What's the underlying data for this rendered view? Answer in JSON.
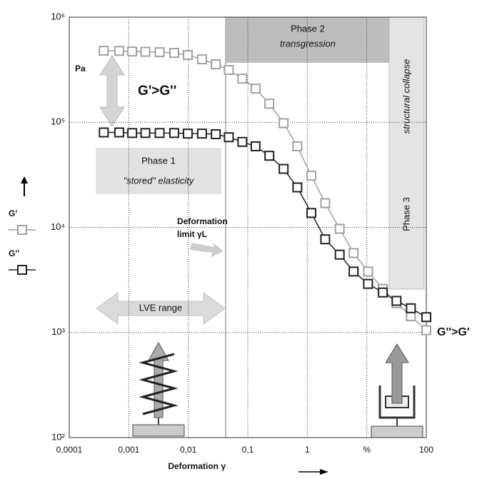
{
  "chart_data": {
    "type": "line",
    "x_label": "Deformation   γ",
    "y_label": "Pa",
    "xscale": "log",
    "yscale": "log",
    "xlim": [
      0.0001,
      100
    ],
    "ylim": [
      100,
      1000000
    ],
    "xticks": [
      {
        "value": 0.0001,
        "label": "0,0001"
      },
      {
        "value": 0.001,
        "label": "0,001"
      },
      {
        "value": 0.01,
        "label": "0,01"
      },
      {
        "value": 0.1,
        "label": "0,1"
      },
      1,
      {
        "value": 10,
        "label": "%"
      },
      100
    ],
    "yticks": [
      {
        "value": 100,
        "label": "10²"
      },
      {
        "value": 1000,
        "label": "10³"
      },
      {
        "value": 10000,
        "label": "10⁴"
      },
      {
        "value": 100000,
        "label": "10⁵"
      },
      {
        "value": 1000000,
        "label": "10⁶"
      }
    ],
    "grid": true,
    "x": [
      0.00038,
      0.00069,
      0.00114,
      0.0019,
      0.0033,
      0.0058,
      0.0098,
      0.017,
      0.029,
      0.048,
      0.081,
      0.135,
      0.23,
      0.4,
      0.68,
      1.17,
      2.0,
      3.5,
      6.0,
      10.5,
      18.6,
      31.6,
      55,
      100
    ],
    "series": [
      {
        "name": "G'",
        "color": "#a0a0a0",
        "values": [
          479000,
          477000,
          471000,
          468000,
          464000,
          457000,
          436000,
          397000,
          356000,
          314000,
          260000,
          209000,
          150000,
          98000,
          59000,
          31000,
          17000,
          9700,
          5700,
          3800,
          2600,
          1900,
          1430,
          1050
        ]
      },
      {
        "name": "G''",
        "color": "#202020",
        "values": [
          80000,
          80000,
          79000,
          79000,
          79000,
          79000,
          78000,
          78000,
          77000,
          72000,
          65000,
          59000,
          48000,
          36000,
          24000,
          13700,
          7700,
          5500,
          3800,
          2900,
          2400,
          2000,
          1700,
          1400
        ]
      }
    ],
    "annotations": [
      "G'>G''",
      "Phase 2",
      "transgression",
      "Phase 1",
      "\"stored\" elasticity",
      "structural collapse",
      "Phase 3",
      "Deformation",
      "limit γL",
      "LVE range",
      "G''>G'"
    ]
  }
}
